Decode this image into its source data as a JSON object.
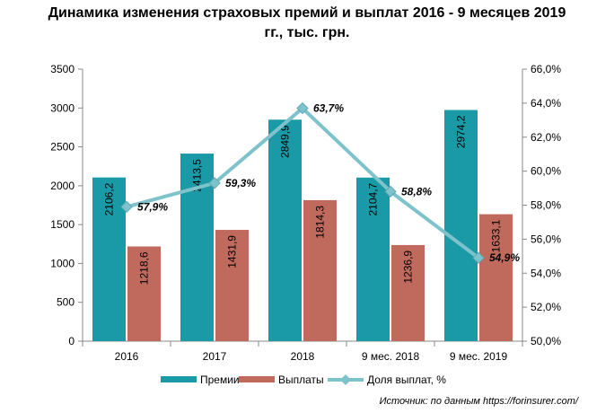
{
  "title_line1": "Динамика изменения страховых премий и выплат  2016 - 9 месяцев 2019",
  "title_line2": "гг., тыс. грн.",
  "source": "Источник: по данным https://forinsurer.com/",
  "chart_data": {
    "type": "bar+line",
    "categories": [
      "2016",
      "2017",
      "2018",
      "9 мес. 2018",
      "9 мес. 2019"
    ],
    "series": [
      {
        "name": "Премии",
        "type": "bar",
        "axis": "left",
        "color": "#1a9aa6",
        "values": [
          2106.2,
          2413.5,
          2849.9,
          2104.7,
          2974.2
        ],
        "labels": [
          "2106,2",
          "2413,5",
          "2849,9",
          "2104,7",
          "2974,2"
        ]
      },
      {
        "name": "Выплаты",
        "type": "bar",
        "axis": "right-values",
        "color": "#c06a5e",
        "values": [
          1218.6,
          1431.9,
          1814.3,
          1236.9,
          1633.1
        ],
        "labels": [
          "1218,6",
          "1431,9",
          "1814,3",
          "1236,9",
          "1633,1"
        ]
      },
      {
        "name": "Доля выплат,  %",
        "type": "line",
        "axis": "right",
        "color": "#7ec3cc",
        "values": [
          57.9,
          59.3,
          63.7,
          58.8,
          54.9
        ],
        "labels": [
          "57,9%",
          "59,3%",
          "63,7%",
          "58,8%",
          "54,9%"
        ]
      }
    ],
    "y_left": {
      "min": 0,
      "max": 3500,
      "ticks": [
        0,
        500,
        1000,
        1500,
        2000,
        2500,
        3000,
        3500
      ],
      "tick_labels": [
        "0",
        "500",
        "1000",
        "1500",
        "2000",
        "2500",
        "3000",
        "3500"
      ]
    },
    "y_right": {
      "min": 50,
      "max": 66,
      "ticks": [
        50,
        52,
        54,
        56,
        58,
        60,
        62,
        64,
        66
      ],
      "tick_labels": [
        "50,0%",
        "52,0%",
        "54,0%",
        "56,0%",
        "58,0%",
        "60,0%",
        "62,0%",
        "64,0%",
        "66,0%"
      ]
    },
    "legend_position": "bottom",
    "grid": false
  }
}
